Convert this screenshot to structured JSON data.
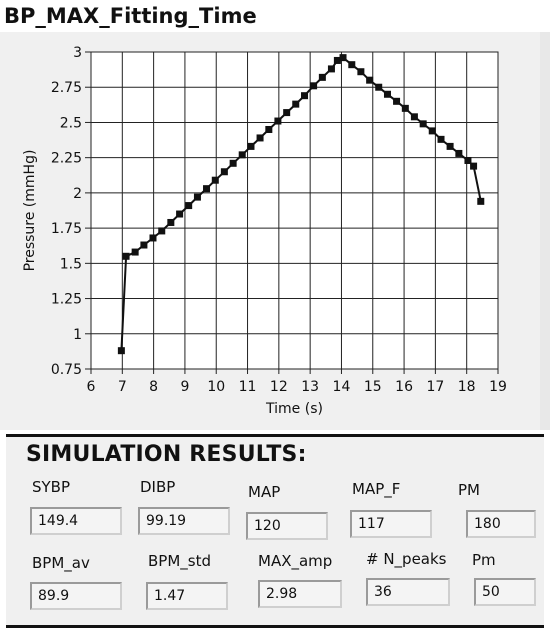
{
  "graph": {
    "title": "BP_MAX_Fitting_Time",
    "chart_data": {
      "type": "line",
      "xlabel": "Time (s)",
      "ylabel": "Pressure (mmHg)",
      "xlim": [
        6,
        19
      ],
      "ylim": [
        0.75,
        3
      ],
      "xticks": [
        "6",
        "7",
        "8",
        "9",
        "10",
        "11",
        "12",
        "13",
        "14",
        "15",
        "16",
        "17",
        "18",
        "19"
      ],
      "yticks": [
        "0.75",
        "1",
        "1.25",
        "1.5",
        "1.75",
        "2",
        "2.25",
        "2.5",
        "2.75",
        "3"
      ],
      "grid": true,
      "marker": "square",
      "series": [
        {
          "x": [
            6.97,
            7.12,
            7.41,
            7.69,
            7.98,
            8.26,
            8.55,
            8.83,
            9.12,
            9.4,
            9.69,
            9.97,
            10.26,
            10.54,
            10.83,
            11.11,
            11.4,
            11.68,
            11.97,
            12.25,
            12.54,
            12.82,
            13.11,
            13.39,
            13.68,
            13.87,
            14.05,
            14.33,
            14.62,
            14.9,
            15.19,
            15.47,
            15.76,
            16.04,
            16.33,
            16.61,
            16.9,
            17.18,
            17.47,
            17.75,
            18.04,
            18.22,
            18.45
          ],
          "y": [
            0.88,
            1.55,
            1.58,
            1.63,
            1.68,
            1.73,
            1.79,
            1.85,
            1.91,
            1.97,
            2.03,
            2.09,
            2.15,
            2.21,
            2.27,
            2.33,
            2.39,
            2.45,
            2.51,
            2.57,
            2.63,
            2.69,
            2.76,
            2.82,
            2.88,
            2.94,
            2.96,
            2.91,
            2.86,
            2.8,
            2.75,
            2.7,
            2.65,
            2.6,
            2.54,
            2.49,
            2.44,
            2.38,
            2.33,
            2.28,
            2.23,
            2.19,
            1.94
          ]
        }
      ]
    }
  },
  "results": {
    "title": "SIMULATION RESULTS:",
    "fields": [
      {
        "label": "SYBP",
        "value": "149.4"
      },
      {
        "label": "DIBP",
        "value": "99.19"
      },
      {
        "label": "MAP",
        "value": "120"
      },
      {
        "label": "MAP_F",
        "value": "117"
      },
      {
        "label": "PM",
        "value": "180"
      },
      {
        "label": "BPM_av",
        "value": "89.9"
      },
      {
        "label": "BPM_std",
        "value": "1.47"
      },
      {
        "label": "MAX_amp",
        "value": "2.98"
      },
      {
        "label": "# N_peaks",
        "value": "36"
      },
      {
        "label": "Pm",
        "value": "50"
      }
    ]
  }
}
